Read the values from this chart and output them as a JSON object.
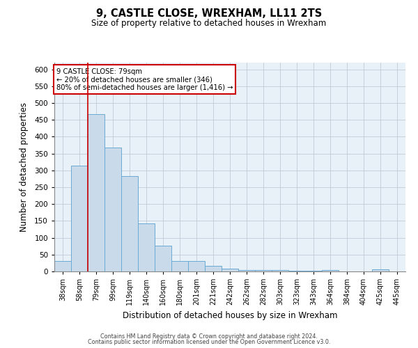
{
  "title": "9, CASTLE CLOSE, WREXHAM, LL11 2TS",
  "subtitle": "Size of property relative to detached houses in Wrexham",
  "xlabel": "Distribution of detached houses by size in Wrexham",
  "ylabel": "Number of detached properties",
  "categories": [
    "38sqm",
    "58sqm",
    "79sqm",
    "99sqm",
    "119sqm",
    "140sqm",
    "160sqm",
    "180sqm",
    "201sqm",
    "221sqm",
    "242sqm",
    "262sqm",
    "282sqm",
    "303sqm",
    "323sqm",
    "343sqm",
    "364sqm",
    "384sqm",
    "404sqm",
    "425sqm",
    "445sqm"
  ],
  "values": [
    32,
    315,
    468,
    367,
    283,
    142,
    76,
    32,
    30,
    17,
    8,
    5,
    5,
    4,
    2,
    2,
    4,
    0,
    0,
    6,
    0
  ],
  "bar_color": "#c9daea",
  "bar_edge_color": "#6aaad4",
  "redline_color": "#cc0000",
  "annotation_title": "9 CASTLE CLOSE: 79sqm",
  "annotation_line1": "← 20% of detached houses are smaller (346)",
  "annotation_line2": "80% of semi-detached houses are larger (1,416) →",
  "annotation_box_color": "#ffffff",
  "annotation_box_edge": "#cc0000",
  "background_color": "#ffffff",
  "plot_bg_color": "#e8f0f8",
  "grid_color": "#c0ccd8",
  "ylim": [
    0,
    620
  ],
  "yticks": [
    0,
    50,
    100,
    150,
    200,
    250,
    300,
    350,
    400,
    450,
    500,
    550,
    600
  ],
  "footer1": "Contains HM Land Registry data © Crown copyright and database right 2024.",
  "footer2": "Contains public sector information licensed under the Open Government Licence v3.0."
}
